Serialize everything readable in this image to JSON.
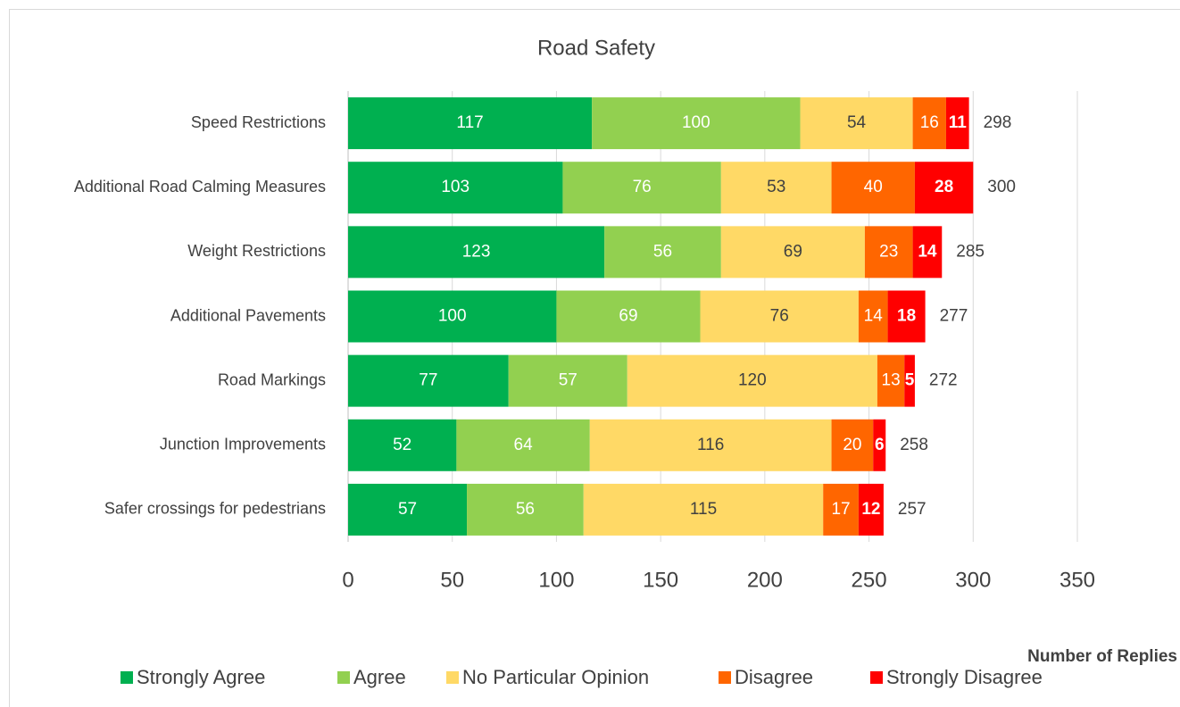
{
  "chart_data": {
    "type": "stacked_bar_horizontal",
    "title": "Road Safety",
    "x_label": "Number of Replies",
    "categories": [
      "Speed Restrictions",
      "Additional Road Calming Measures",
      "Weight Restrictions",
      "Additional Pavements",
      "Road Markings",
      "Junction Improvements",
      "Safer crossings for pedestrians"
    ],
    "series": [
      {
        "name": "Strongly Agree",
        "color": "#00b050",
        "label_color": "#ffffff",
        "values": [
          117,
          103,
          123,
          100,
          77,
          52,
          57
        ]
      },
      {
        "name": "Agree",
        "color": "#92d050",
        "label_color": "#ffffff",
        "values": [
          100,
          76,
          56,
          69,
          57,
          64,
          56
        ]
      },
      {
        "name": "No Particular Opinion",
        "color": "#ffd966",
        "label_color": "#404040",
        "values": [
          54,
          53,
          69,
          76,
          120,
          116,
          115
        ]
      },
      {
        "name": "Disagree",
        "color": "#ff6600",
        "label_color": "#ffffff",
        "values": [
          16,
          40,
          23,
          14,
          13,
          20,
          17
        ]
      },
      {
        "name": "Strongly Disagree",
        "color": "#ff0000",
        "label_color": "#ffffff",
        "label_bold": true,
        "values": [
          11,
          28,
          14,
          18,
          5,
          6,
          12
        ]
      }
    ],
    "totals": [
      298,
      300,
      285,
      277,
      272,
      258,
      257
    ],
    "xlim": [
      0,
      350
    ],
    "xticks": [
      0,
      50,
      100,
      150,
      200,
      250,
      300,
      350
    ],
    "grid": true,
    "legend": "bottom"
  }
}
